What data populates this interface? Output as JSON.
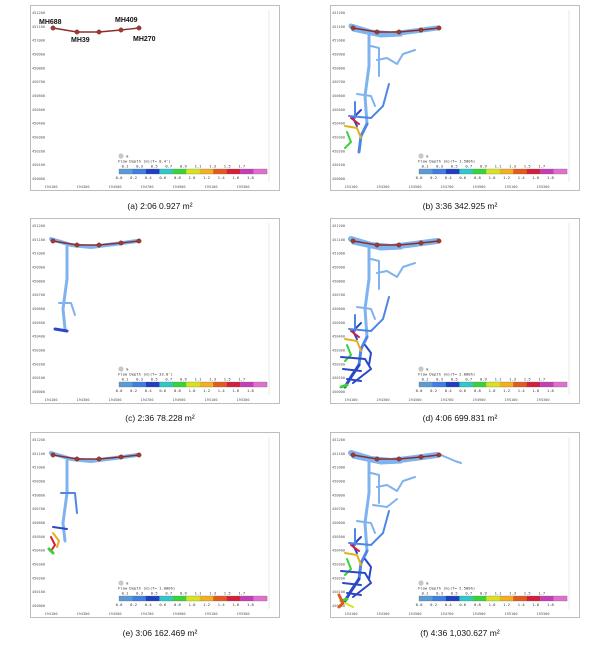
{
  "y_ticks": [
    "451200",
    "451100",
    "451000",
    "450900",
    "450800",
    "450700",
    "450600",
    "450500",
    "450400",
    "450300",
    "450200",
    "450100",
    "450000"
  ],
  "x_ticks": [
    "194100",
    "194300",
    "194500",
    "194700",
    "194900",
    "195100",
    "195300"
  ],
  "legend": {
    "label": "m",
    "upper_values": [
      "0.1",
      "0.3",
      "0.5",
      "0.7",
      "0.9",
      "1.1",
      "1.3",
      "1.5",
      "1.7"
    ],
    "lower_values": [
      "0.0",
      "0.2",
      "0.4",
      "0.6",
      "0.8",
      "1.0",
      "1.2",
      "1.4",
      "1.6",
      "1.8"
    ],
    "colors": [
      "#5b9bd5",
      "#3f7fe0",
      "#1f3fc0",
      "#2ec8c8",
      "#39d239",
      "#d6e31e",
      "#f0b020",
      "#e35a1e",
      "#d21f3c",
      "#c43fb5",
      "#e070d0"
    ]
  },
  "manholes": [
    "MH688",
    "MH39",
    "MH409",
    "MH270"
  ],
  "panels": [
    {
      "id": "a",
      "caption": "(a) 2:06 0.927 m²",
      "legend_title": "Flow Depth (m)(T= 0.4')"
    },
    {
      "id": "b",
      "caption": "(b) 3:36 342.925 m²",
      "legend_title": "Flow Depth (m)(T= 1.500h)"
    },
    {
      "id": "c",
      "caption": "(c) 2:36 78.228 m²",
      "legend_title": "Flow Depth (m)(T= 33.0')"
    },
    {
      "id": "d",
      "caption": "(d) 4:06 699.831 m²",
      "legend_title": "Flow Depth (m)(T= 2.000h)"
    },
    {
      "id": "e",
      "caption": "(e) 3:06 162.469 m²",
      "legend_title": "Flow Depth (m)(T= 1.000h)"
    },
    {
      "id": "f",
      "caption": "(f) 4:36 1,030.627 m²",
      "legend_title": "Flow Depth (m)(T= 2.500h)"
    }
  ]
}
